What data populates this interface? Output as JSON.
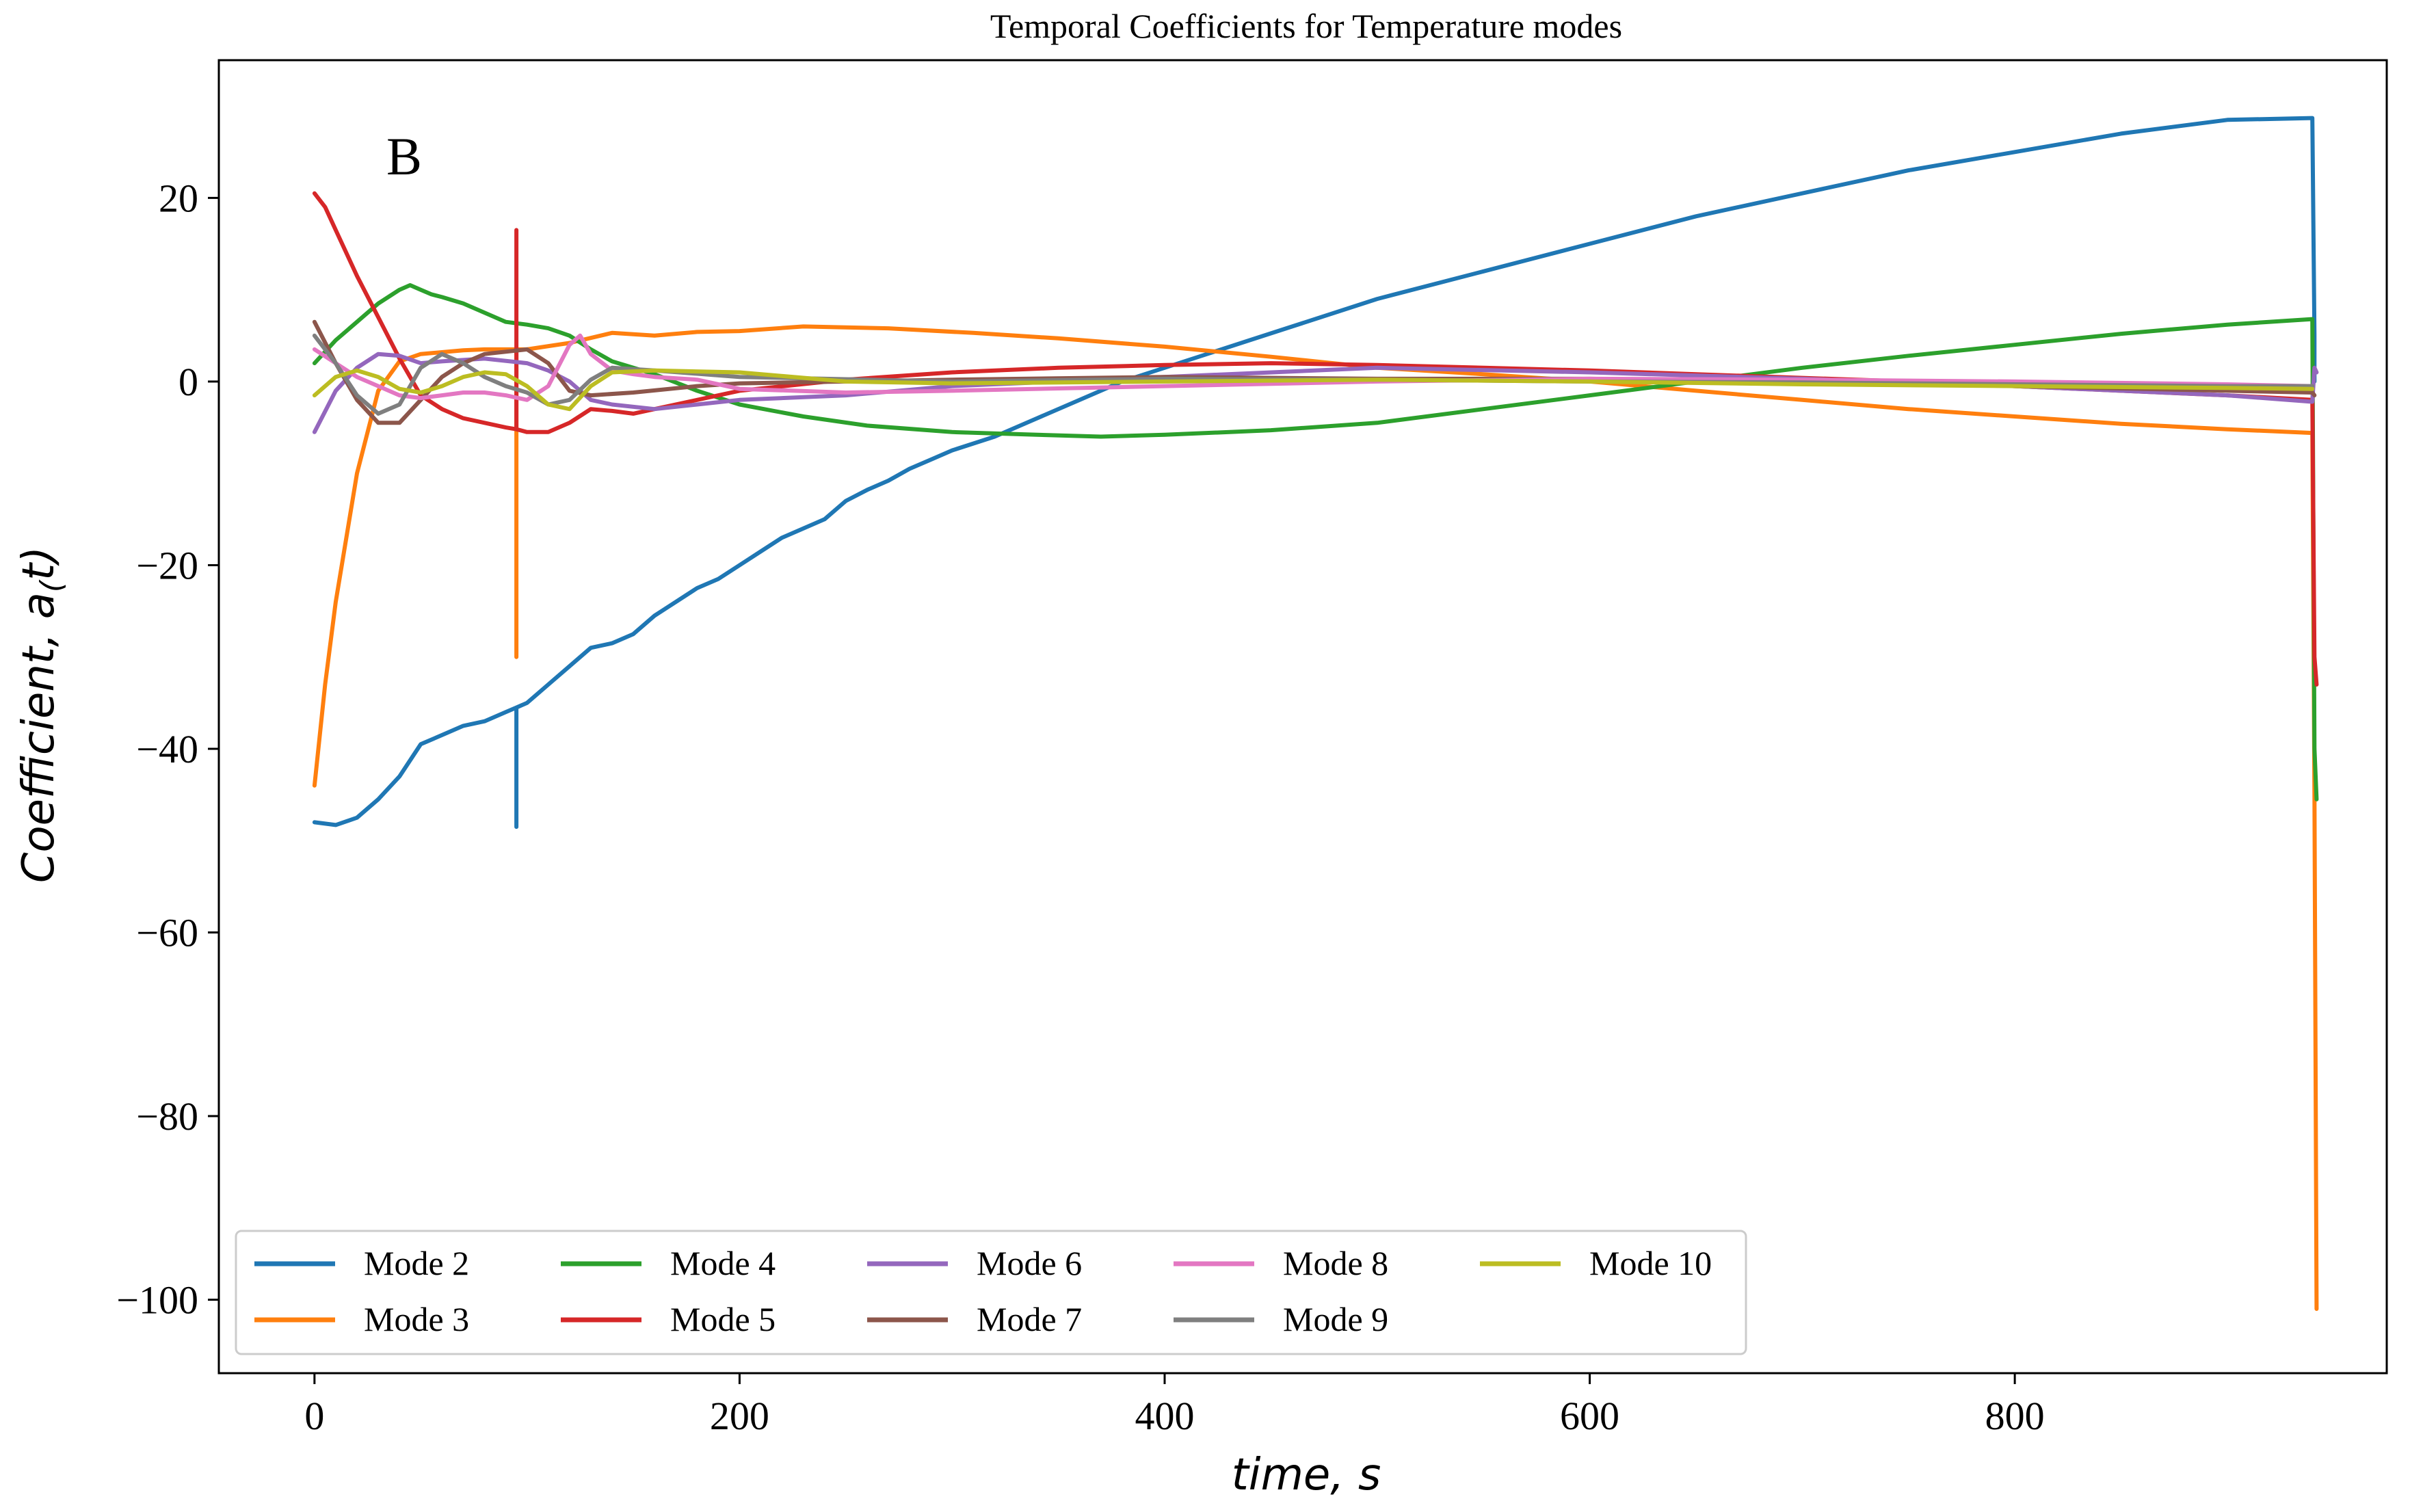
{
  "chart_data": {
    "type": "line",
    "title": "Temporal Coefficients for Temperature modes",
    "panel_label": "B",
    "xlabel": "time, s",
    "ylabel": "Coefficient, a(t)",
    "ylabel_parts": {
      "main": "Coefficient, a",
      "sub": "(",
      "tail": "t)"
    },
    "xlim": [
      -45,
      975
    ],
    "ylim": [
      -108,
      35
    ],
    "xticks": [
      0,
      200,
      400,
      600,
      800
    ],
    "yticks": [
      20,
      0,
      -20,
      -40,
      -60,
      -80,
      -100
    ],
    "ytick_labels": [
      "20",
      "0",
      "−20",
      "−40",
      "−60",
      "−80",
      "−100"
    ],
    "legend_position": "lower-left",
    "series": [
      {
        "name": "Mode 2",
        "color": "#1f77b4",
        "x": [
          0,
          10,
          20,
          30,
          40,
          50,
          60,
          70,
          80,
          90,
          95,
          95,
          95,
          100,
          110,
          120,
          130,
          140,
          150,
          160,
          170,
          180,
          190,
          200,
          210,
          220,
          230,
          240,
          250,
          260,
          270,
          280,
          290,
          300,
          320,
          340,
          360,
          380,
          400,
          420,
          440,
          460,
          500,
          550,
          600,
          650,
          700,
          750,
          800,
          850,
          900,
          940,
          941,
          941
        ],
        "y": [
          -48,
          -48.3,
          -47.5,
          -45.5,
          -43,
          -39.5,
          -38.5,
          -37.5,
          -37,
          -36,
          -35.5,
          -48.5,
          -35.5,
          -35,
          -33,
          -31,
          -29,
          -28.5,
          -27.5,
          -25.5,
          -24,
          -22.5,
          -21.5,
          -20,
          -18.5,
          -17,
          -16,
          -15,
          -13,
          -11.8,
          -10.8,
          -9.5,
          -8.5,
          -7.5,
          -6,
          -4,
          -2,
          0,
          1.5,
          3,
          4.5,
          6,
          9,
          12,
          15,
          18,
          20.5,
          23,
          25,
          27,
          28.5,
          28.7,
          5,
          0
        ]
      },
      {
        "name": "Mode 3",
        "color": "#ff7f0e",
        "x": [
          0,
          5,
          10,
          20,
          30,
          40,
          50,
          60,
          70,
          80,
          90,
          95,
          95,
          95,
          100,
          120,
          140,
          160,
          180,
          200,
          230,
          270,
          310,
          350,
          400,
          450,
          500,
          550,
          600,
          650,
          700,
          750,
          800,
          850,
          900,
          940,
          941,
          942
        ],
        "y": [
          -44,
          -33,
          -24,
          -10,
          -1,
          2.2,
          3,
          3.2,
          3.4,
          3.5,
          3.5,
          3.5,
          -30,
          3.5,
          3.5,
          4.2,
          5.3,
          5.0,
          5.4,
          5.5,
          6.0,
          5.8,
          5.3,
          4.7,
          3.8,
          2.7,
          1.5,
          0.8,
          0,
          -1,
          -2,
          -3,
          -3.8,
          -4.6,
          -5.2,
          -5.6,
          -45,
          -101
        ]
      },
      {
        "name": "Mode 4",
        "color": "#2ca02c",
        "x": [
          0,
          10,
          20,
          30,
          40,
          45,
          50,
          55,
          60,
          70,
          80,
          90,
          100,
          110,
          120,
          130,
          140,
          150,
          160,
          180,
          200,
          230,
          260,
          300,
          340,
          370,
          400,
          450,
          500,
          550,
          600,
          650,
          700,
          750,
          800,
          850,
          900,
          940,
          941,
          942
        ],
        "y": [
          2,
          4.5,
          6.5,
          8.5,
          10,
          10.5,
          10,
          9.5,
          9.2,
          8.5,
          7.5,
          6.5,
          6.2,
          5.8,
          5,
          3.5,
          2.2,
          1.5,
          0.8,
          -1,
          -2.5,
          -3.8,
          -4.8,
          -5.5,
          -5.8,
          -6,
          -5.8,
          -5.3,
          -4.5,
          -3,
          -1.5,
          0,
          1.5,
          2.8,
          4,
          5.2,
          6.2,
          6.8,
          -40,
          -45.5
        ]
      },
      {
        "name": "Mode 5",
        "color": "#d62728",
        "x": [
          0,
          5,
          10,
          15,
          20,
          30,
          40,
          50,
          60,
          70,
          80,
          90,
          95,
          95,
          95,
          100,
          110,
          120,
          130,
          140,
          150,
          160,
          180,
          200,
          250,
          300,
          350,
          400,
          450,
          500,
          550,
          600,
          650,
          700,
          750,
          800,
          850,
          900,
          940,
          941,
          942
        ],
        "y": [
          20.5,
          19,
          16.5,
          14,
          11.5,
          7,
          2.5,
          -1.5,
          -3.0,
          -4.0,
          -4.5,
          -5.0,
          -5.2,
          16.5,
          -5.2,
          -5.5,
          -5.5,
          -4.5,
          -3,
          -3.2,
          -3.5,
          -3,
          -2,
          -1,
          0.2,
          1,
          1.5,
          1.8,
          2.0,
          1.8,
          1.5,
          1.2,
          0.8,
          0.4,
          0,
          -0.5,
          -1,
          -1.5,
          -2.0,
          -30,
          -33
        ]
      },
      {
        "name": "Mode 6",
        "color": "#9467bd",
        "x": [
          0,
          10,
          20,
          30,
          40,
          50,
          60,
          80,
          100,
          110,
          120,
          130,
          140,
          160,
          180,
          200,
          250,
          300,
          400,
          500,
          600,
          700,
          800,
          900,
          940,
          941,
          942
        ],
        "y": [
          -5.5,
          -1,
          1.5,
          3,
          2.8,
          2,
          2.2,
          2.5,
          2,
          1.2,
          0,
          -2,
          -2.5,
          -3,
          -2.5,
          -2,
          -1.5,
          -0.5,
          0.5,
          1.5,
          1,
          0.3,
          -0.5,
          -1.5,
          -2.2,
          1.5,
          1
        ]
      },
      {
        "name": "Mode 7",
        "color": "#8c564b",
        "x": [
          0,
          10,
          20,
          30,
          40,
          50,
          60,
          70,
          80,
          100,
          110,
          120,
          130,
          150,
          180,
          200,
          300,
          400,
          500,
          600,
          700,
          800,
          900,
          940,
          941
        ],
        "y": [
          6.5,
          2,
          -2,
          -4.5,
          -4.5,
          -2,
          0.5,
          2,
          3,
          3.5,
          2,
          -1,
          -1.5,
          -1.2,
          -0.5,
          -0.2,
          0.2,
          0.5,
          0.3,
          0.3,
          0,
          -0.5,
          -1,
          -1.2,
          -1.5
        ]
      },
      {
        "name": "Mode 8",
        "color": "#e377c2",
        "x": [
          0,
          10,
          20,
          30,
          40,
          50,
          60,
          70,
          80,
          90,
          100,
          110,
          120,
          125,
          130,
          140,
          150,
          160,
          180,
          200,
          250,
          300,
          400,
          500,
          600,
          700,
          800,
          900,
          940
        ],
        "y": [
          3.5,
          2,
          0.5,
          -0.5,
          -1.5,
          -1.8,
          -1.5,
          -1.2,
          -1.2,
          -1.5,
          -2,
          -0.5,
          4,
          5,
          3,
          1.2,
          0.8,
          0.5,
          0.2,
          -0.8,
          -1.2,
          -1.0,
          -0.5,
          0,
          0.3,
          0.2,
          0,
          -0.3,
          -0.5
        ]
      },
      {
        "name": "Mode 9",
        "color": "#7f7f7f",
        "x": [
          0,
          10,
          20,
          30,
          40,
          50,
          60,
          70,
          80,
          90,
          100,
          110,
          120,
          130,
          140,
          160,
          200,
          300,
          400,
          500,
          600,
          700,
          800,
          900,
          940
        ],
        "y": [
          5,
          2,
          -1.5,
          -3.5,
          -2.5,
          1.5,
          3,
          2,
          0.5,
          -0.5,
          -1.2,
          -2.5,
          -2.0,
          0.2,
          1.5,
          1.2,
          0.5,
          0,
          0.3,
          0.2,
          0,
          -0.1,
          -0.3,
          -0.5,
          -0.5
        ]
      },
      {
        "name": "Mode 10",
        "color": "#bcbd22",
        "x": [
          0,
          10,
          20,
          30,
          40,
          50,
          60,
          70,
          80,
          90,
          100,
          110,
          120,
          130,
          140,
          160,
          200,
          250,
          300,
          400,
          500,
          600,
          700,
          800,
          900,
          940
        ],
        "y": [
          -1.5,
          0.5,
          1.2,
          0.5,
          -0.8,
          -1.2,
          -0.5,
          0.5,
          1,
          0.8,
          -0.5,
          -2.5,
          -3,
          -0.5,
          1,
          1.2,
          1.0,
          0,
          -0.2,
          0,
          0.2,
          0,
          -0.3,
          -0.5,
          -0.7,
          -0.8
        ]
      }
    ]
  }
}
